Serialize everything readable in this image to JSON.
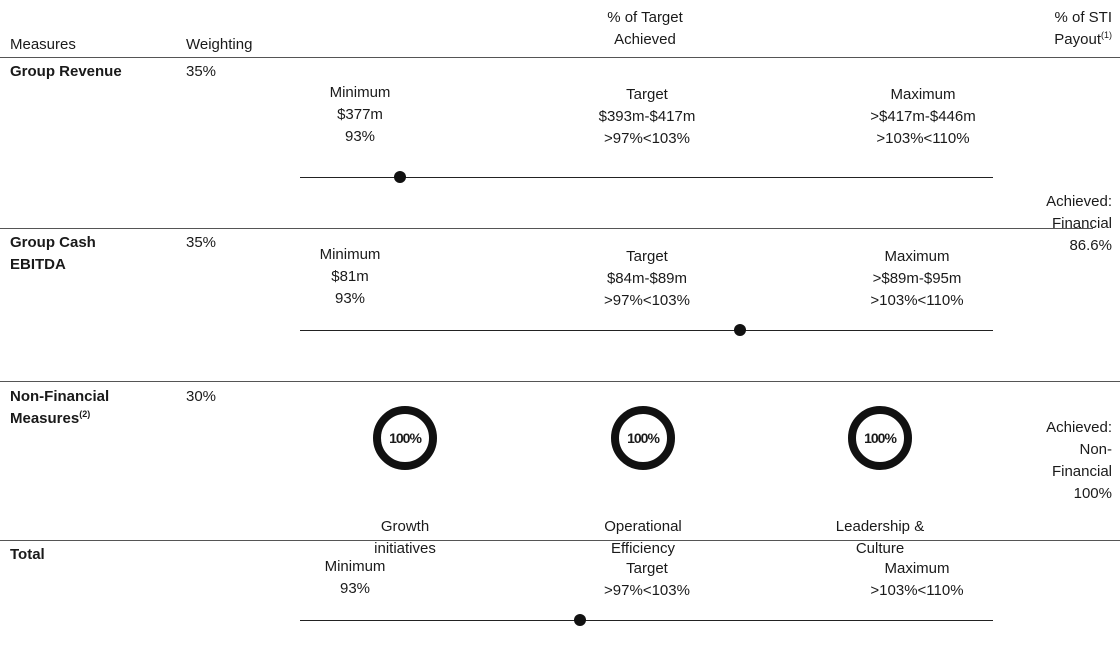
{
  "header": {
    "measures": "Measures",
    "weighting": "Weighting",
    "target_achieved": "% of Target Achieved",
    "sti_payout": "% of STI Payout",
    "sti_payout_note": "(1)"
  },
  "rows": [
    {
      "measure": "Group Revenue",
      "weighting": "35%",
      "minimum": [
        "Minimum",
        "$377m",
        "93%"
      ],
      "target": [
        "Target",
        "$393m-$417m",
        ">97%<103%"
      ],
      "maximum": [
        "Maximum",
        ">$417m-$446m",
        ">103%<110%"
      ]
    },
    {
      "measure": "Group Cash EBITDA",
      "weighting": "35%",
      "minimum": [
        "Minimum",
        "$81m",
        "93%"
      ],
      "target": [
        "Target",
        "$84m-$89m",
        ">97%<103%"
      ],
      "maximum": [
        "Maximum",
        ">$89m-$95m",
        ">103%<110%"
      ]
    },
    {
      "measure": "Non-Financial Measures",
      "measure_note": "(2)",
      "weighting": "30%",
      "measures": [
        {
          "value": "100%",
          "label": "Growth initiatives"
        },
        {
          "value": "100%",
          "label": "Operational Efficiency"
        },
        {
          "value": "100%",
          "label": "Leadership & Culture"
        }
      ]
    },
    {
      "measure": "Total",
      "minimum": [
        "Minimum",
        "93%"
      ],
      "target": [
        "Target",
        ">97%<103%"
      ],
      "maximum": [
        "Maximum",
        ">103%<110%"
      ]
    }
  ],
  "payouts": [
    {
      "label": "Achieved:",
      "category": "Financial",
      "value": "86.6%"
    },
    {
      "label": "Achieved:",
      "category": "Non-Financial",
      "value": "100%"
    }
  ]
}
